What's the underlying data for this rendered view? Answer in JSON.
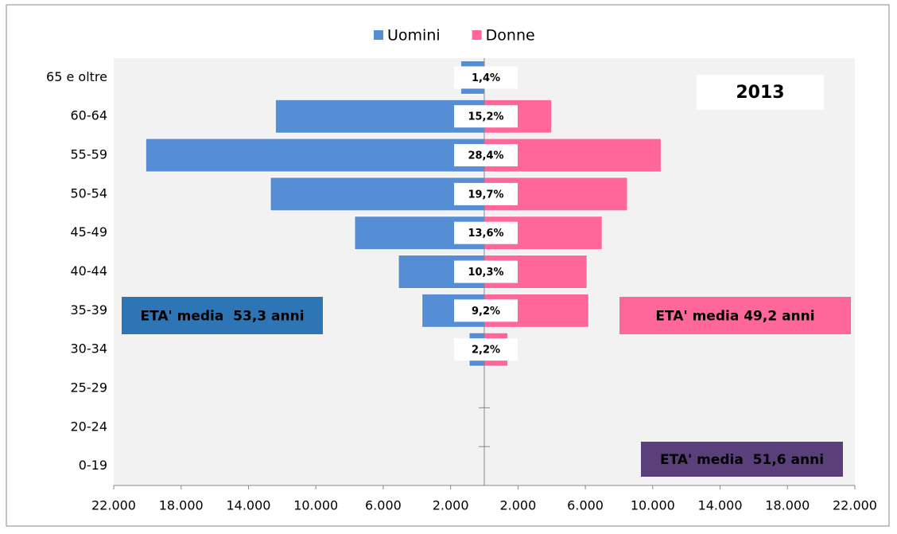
{
  "chart_data": {
    "type": "pyramid",
    "categories": [
      "65 e oltre",
      "60-64",
      "55-59",
      "50-54",
      "45-49",
      "40-44",
      "35-39",
      "30-34",
      "25-29",
      "20-24",
      "0-19"
    ],
    "series": [
      {
        "name": "Uomini",
        "color": "#558ed5",
        "side": "left",
        "values": [
          1400,
          12400,
          20100,
          12700,
          7700,
          5100,
          3700,
          900,
          0,
          0,
          0
        ]
      },
      {
        "name": "Donne",
        "color": "#ff6699",
        "side": "right",
        "values": [
          0,
          4000,
          10500,
          8500,
          7000,
          6100,
          6200,
          1400,
          0,
          0,
          0
        ]
      }
    ],
    "shares": {
      "values": [
        1.4,
        15.2,
        28.4,
        19.7,
        13.6,
        10.3,
        9.2,
        2.2
      ],
      "value_labels": [
        "1,4%",
        "15,2%",
        "28,4%",
        "19,7%",
        "13,6%",
        "10,3%",
        "9,2%",
        "2,2%"
      ]
    },
    "xlim": [
      -22000,
      22000
    ],
    "xticks": [
      {
        "value": -22000,
        "label": "22.000"
      },
      {
        "value": -18000,
        "label": "18.000"
      },
      {
        "value": -14000,
        "label": "14.000"
      },
      {
        "value": -10000,
        "label": "10.000"
      },
      {
        "value": -6000,
        "label": "6.000"
      },
      {
        "value": -2000,
        "label": "2.000"
      },
      {
        "value": 2000,
        "label": "2.000"
      },
      {
        "value": 6000,
        "label": "6.000"
      },
      {
        "value": 10000,
        "label": "10.000"
      },
      {
        "value": 14000,
        "label": "14.000"
      },
      {
        "value": 18000,
        "label": "18.000"
      },
      {
        "value": 22000,
        "label": "22.000"
      }
    ],
    "legend": "top",
    "annotations": [
      {
        "text": "2013",
        "color": "#ffffff",
        "text_color": "#000000"
      },
      {
        "text": "ETA' media  53,3 anni",
        "color": "#2e75b6",
        "text_color": "#ffffff"
      },
      {
        "text": "ETA' media 49,2 anni",
        "color": "#ff6699",
        "text_color": "#ffffff"
      },
      {
        "text": "ETA' media  51,6 anni",
        "color": "#5b3f7a",
        "text_color": "#ffffff"
      }
    ]
  }
}
